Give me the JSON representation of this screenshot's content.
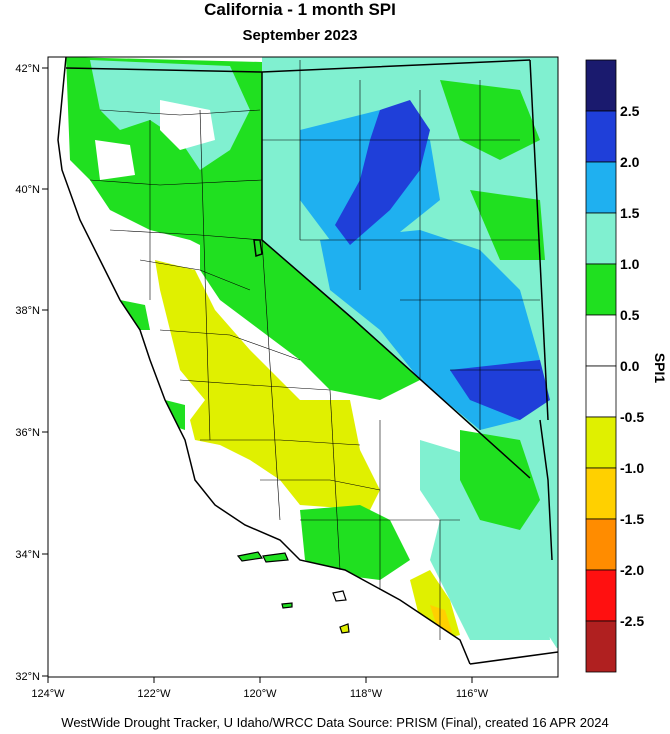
{
  "title": "California - 1 month SPI",
  "subtitle": "September 2023",
  "footer": "WestWide Drought Tracker, U Idaho/WRCC Data Source: PRISM (Final), created 16 APR 2024",
  "map": {
    "lon_range": [
      -124.0,
      -114.0
    ],
    "lat_range": [
      32.0,
      42.0
    ],
    "lon_ticks": [
      "124°W",
      "122°W",
      "120°W",
      "118°W",
      "116°W"
    ],
    "lat_ticks": [
      "42°N",
      "40°N",
      "38°N",
      "36°N",
      "34°N",
      "32°N"
    ]
  },
  "colorbar": {
    "title": "SPI1",
    "labels": [
      "2.5",
      "2.0",
      "1.5",
      "1.0",
      "0.5",
      "0.0",
      "-0.5",
      "-1.0",
      "-1.5",
      "-2.0",
      "-2.5"
    ],
    "colors": [
      "#1a1a6e",
      "#1f3fd9",
      "#1fb0f0",
      "#80f0d0",
      "#20e020",
      "#ffffff",
      "#ffffff",
      "#e0f000",
      "#ffd000",
      "#ff8c00",
      "#ff1010",
      "#b02020"
    ]
  }
}
